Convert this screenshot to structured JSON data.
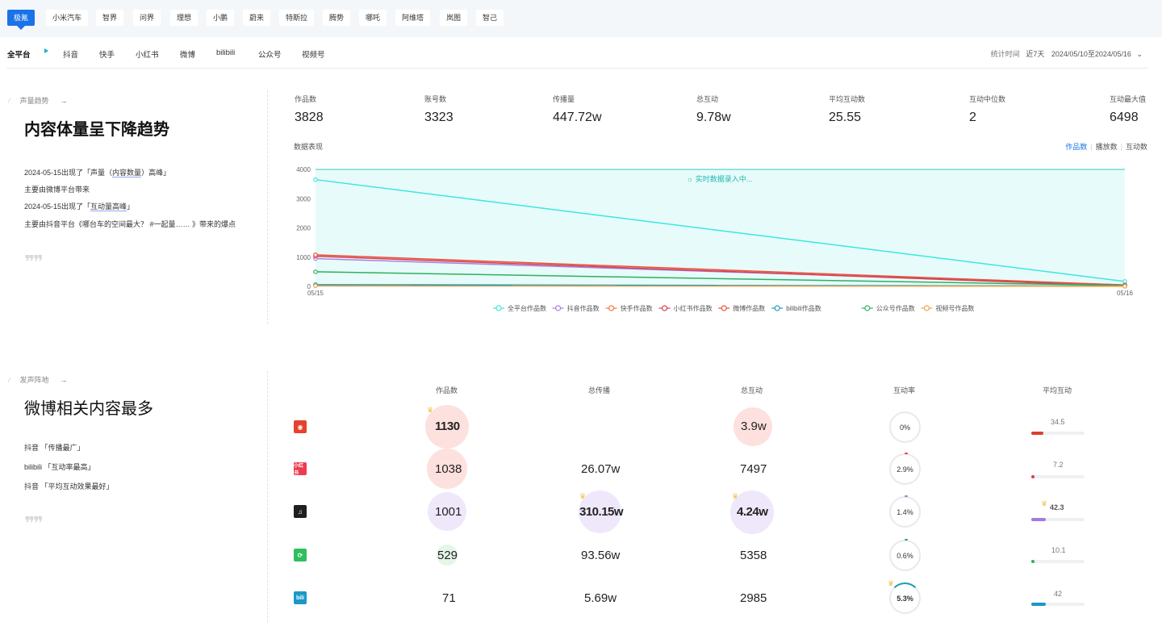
{
  "brand_tabs": [
    "极氪",
    "小米汽车",
    "智界",
    "问界",
    "理想",
    "小鹏",
    "蔚来",
    "特斯拉",
    "腾势",
    "哪吒",
    "阿维塔",
    "岚图",
    "智己"
  ],
  "platform_tabs": [
    "全平台",
    "抖音",
    "快手",
    "小红书",
    "微博",
    "bilibili",
    "公众号",
    "视频号"
  ],
  "stat_time": {
    "label": "统计时间",
    "range": "近7天",
    "dates": "2024/05/10至2024/05/16"
  },
  "section1": {
    "tag": "声量趋势",
    "title": "内容体量呈下降趋势",
    "notes": {
      "line1_pre": "2024-05-15出现了「声量（",
      "line1_hl": "内容数量",
      "line1_post": "）高峰」",
      "line2": "主要由微博平台带来",
      "line3_pre": "2024-05-15出现了「",
      "line3_hl": "互动量高峰",
      "line3_post": "」",
      "line4": "主要由抖音平台《哪台车的空间最大？ #一起量…… 》带来的爆点"
    }
  },
  "kpis": [
    {
      "label": "作品数",
      "value": "3828"
    },
    {
      "label": "账号数",
      "value": "3323"
    },
    {
      "label": "传播量",
      "value": "447.72w"
    },
    {
      "label": "总互动",
      "value": "9.78w"
    },
    {
      "label": "平均互动数",
      "value": "25.55"
    },
    {
      "label": "互动中位数",
      "value": "2"
    },
    {
      "label": "互动最大值",
      "value": "6498"
    }
  ],
  "chart_section_label": "数据表现",
  "metric_switch": [
    "作品数",
    "播放数",
    "互动数"
  ],
  "chart_data": {
    "type": "line",
    "x": [
      "05/15",
      "05/16"
    ],
    "ylim": [
      0,
      4000
    ],
    "yticks": [
      0,
      1000,
      2000,
      3000,
      4000
    ],
    "annotation": "实时数据录入中...",
    "series": [
      {
        "name": "全平台作品数",
        "color": "#3ee6e0",
        "values": [
          3650,
          170
        ]
      },
      {
        "name": "抖音作品数",
        "color": "#a77fe0",
        "values": [
          950,
          50
        ]
      },
      {
        "name": "快手作品数",
        "color": "#f07a3a",
        "values": [
          40,
          8
        ]
      },
      {
        "name": "小红书作品数",
        "color": "#d8404f",
        "values": [
          1030,
          8
        ]
      },
      {
        "name": "微博作品数",
        "color": "#e8513a",
        "values": [
          1080,
          50
        ]
      },
      {
        "name": "bilibili作品数",
        "color": "#1aa0b3",
        "values": [
          60,
          10
        ]
      },
      {
        "name": "公众号作品数",
        "color": "#2fb061",
        "values": [
          500,
          30
        ]
      },
      {
        "name": "视频号作品数",
        "color": "#f0a04b",
        "values": [
          20,
          5
        ]
      }
    ]
  },
  "section2": {
    "tag": "发声阵地",
    "title": "微博相关内容最多",
    "notes": [
      "抖音 「传播最广」",
      "bilibili 「互动率最高」",
      "抖音 「平均互动效果最好」"
    ]
  },
  "table": {
    "headers": [
      "作品数",
      "总传播",
      "总互动",
      "互动率",
      "平均互动"
    ],
    "rows": [
      {
        "platform": "微博",
        "icon": "weibo-icon",
        "icon_color": "#e8412c",
        "works": "1130",
        "spread": "",
        "interact": "3.9w",
        "rate": "0%",
        "rate_color": "#e8412c",
        "avg": "34.5",
        "avg_fraction": 0.23,
        "avg_color": "#d9412c"
      },
      {
        "platform": "小红书",
        "icon": "xiaohongshu-icon",
        "icon_color": "#ec3c52",
        "works": "1038",
        "spread": "26.07w",
        "interact": "7497",
        "rate": "2.9%",
        "rate_color": "#e8412c",
        "avg": "7.2",
        "avg_fraction": 0.05,
        "avg_color": "#e03a50"
      },
      {
        "platform": "抖音",
        "icon": "douyin-icon",
        "icon_color": "#1f1f1f",
        "works": "1001",
        "spread": "310.15w",
        "interact": "4.24w",
        "rate": "1.4%",
        "rate_color": "#9b7be0",
        "avg": "42.3",
        "avg_fraction": 0.28,
        "avg_color": "#a07ce0"
      },
      {
        "platform": "公众号",
        "icon": "wechat-official-icon",
        "icon_color": "#2fbf5e",
        "works": "529",
        "spread": "93.56w",
        "interact": "5358",
        "rate": "0.6%",
        "rate_color": "#2fb061",
        "avg": "10.1",
        "avg_fraction": 0.07,
        "avg_color": "#2fb061"
      },
      {
        "platform": "bilibili",
        "icon": "bilibili-icon",
        "icon_color": "#1a98c8",
        "works": "71",
        "spread": "5.69w",
        "interact": "2985",
        "rate": "5.3%",
        "rate_color": "#1aa0b3",
        "avg": "42",
        "avg_fraction": 0.27,
        "avg_color": "#1a98c8"
      }
    ]
  }
}
